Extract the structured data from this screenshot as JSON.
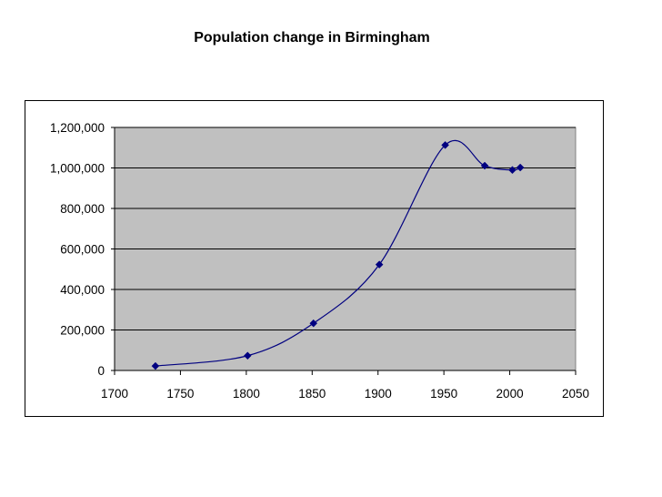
{
  "chart_data": {
    "type": "line",
    "title": "Population change in Birmingham",
    "xlabel": "",
    "ylabel": "",
    "xlim": [
      1700,
      2050
    ],
    "ylim": [
      0,
      1200000
    ],
    "x_ticks": [
      1700,
      1750,
      1800,
      1850,
      1900,
      1950,
      2000,
      2050
    ],
    "x_tick_labels": [
      "1700",
      "1750",
      "1800",
      "1850",
      "1900",
      "1950",
      "2000",
      "2050"
    ],
    "y_ticks": [
      0,
      200000,
      400000,
      600000,
      800000,
      1000000,
      1200000
    ],
    "y_tick_labels": [
      "0",
      "200,000",
      "400,000",
      "600,000",
      "800,000",
      "1,000,000",
      "1,200,000"
    ],
    "grid": "horizontal",
    "legend": "none",
    "plot_background": "#c0c0c0",
    "series": [
      {
        "color": "#000080",
        "marker": "diamond",
        "smooth": true,
        "x": [
          1731,
          1801,
          1851,
          1901,
          1951,
          1981,
          2002,
          2008
        ],
        "y": [
          22000,
          73000,
          233000,
          523000,
          1113000,
          1011000,
          990000,
          1002000
        ]
      }
    ]
  }
}
